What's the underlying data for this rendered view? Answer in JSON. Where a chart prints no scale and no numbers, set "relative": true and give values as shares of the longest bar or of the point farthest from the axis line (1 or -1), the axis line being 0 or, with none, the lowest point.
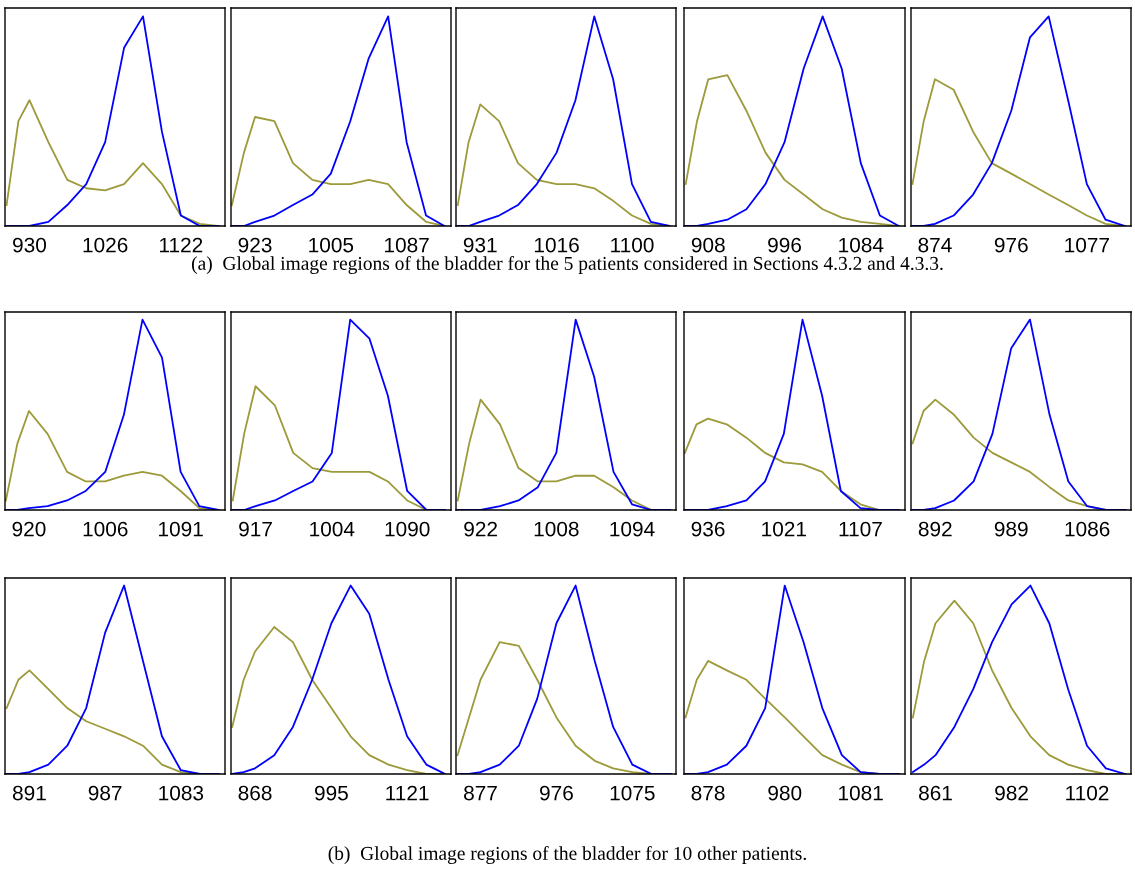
{
  "chart_data": [
    {
      "type": "line",
      "relative": true,
      "xlim": [
        899,
        1178
      ],
      "xticks": [
        930,
        1026,
        1122
      ],
      "annotations": [
        "(a)  Global image regions of the bladder for the 5 patients considered in Sections 4.3.2 and 4.3.3."
      ],
      "x": [
        901,
        916,
        930,
        954,
        978,
        1002,
        1026,
        1050,
        1074,
        1098,
        1122,
        1146,
        1170
      ],
      "series": [
        {
          "color": "#9c9a3a",
          "values": [
            0.1,
            0.5,
            0.6,
            0.4,
            0.22,
            0.18,
            0.17,
            0.2,
            0.3,
            0.2,
            0.05,
            0.01,
            0
          ]
        },
        {
          "color": "#0000ff",
          "values": [
            0,
            0,
            0,
            0.02,
            0.1,
            0.2,
            0.4,
            0.85,
            1.0,
            0.45,
            0.05,
            0,
            0
          ]
        }
      ]
    },
    {
      "type": "line",
      "relative": true,
      "xlim": [
        897,
        1135
      ],
      "xticks": [
        923,
        1005,
        1087
      ],
      "x": [
        898,
        911,
        923,
        944,
        964,
        985,
        1005,
        1026,
        1046,
        1067,
        1087,
        1108,
        1128
      ],
      "series": [
        {
          "color": "#9c9a3a",
          "values": [
            0.1,
            0.35,
            0.52,
            0.5,
            0.3,
            0.22,
            0.2,
            0.2,
            0.22,
            0.2,
            0.1,
            0.02,
            0
          ]
        },
        {
          "color": "#0000ff",
          "values": [
            0,
            0,
            0.02,
            0.05,
            0.1,
            0.15,
            0.25,
            0.5,
            0.8,
            1.0,
            0.4,
            0.05,
            0
          ]
        }
      ]
    },
    {
      "type": "line",
      "relative": true,
      "xlim": [
        904,
        1149
      ],
      "xticks": [
        931,
        1016,
        1100
      ],
      "x": [
        906,
        918,
        931,
        952,
        973,
        994,
        1016,
        1037,
        1058,
        1079,
        1100,
        1121,
        1142
      ],
      "series": [
        {
          "color": "#9c9a3a",
          "values": [
            0.1,
            0.4,
            0.58,
            0.5,
            0.3,
            0.22,
            0.2,
            0.2,
            0.18,
            0.12,
            0.05,
            0.01,
            0
          ]
        },
        {
          "color": "#0000ff",
          "values": [
            0,
            0,
            0.02,
            0.05,
            0.1,
            0.2,
            0.35,
            0.6,
            1.0,
            0.7,
            0.2,
            0.02,
            0
          ]
        }
      ]
    },
    {
      "type": "line",
      "relative": true,
      "xlim": [
        880,
        1135
      ],
      "xticks": [
        908,
        996,
        1084
      ],
      "x": [
        882,
        895,
        908,
        930,
        952,
        974,
        996,
        1018,
        1040,
        1062,
        1084,
        1106,
        1128
      ],
      "series": [
        {
          "color": "#9c9a3a",
          "values": [
            0.2,
            0.5,
            0.7,
            0.72,
            0.55,
            0.35,
            0.22,
            0.15,
            0.08,
            0.04,
            0.02,
            0.01,
            0
          ]
        },
        {
          "color": "#0000ff",
          "values": [
            0,
            0,
            0.01,
            0.03,
            0.08,
            0.2,
            0.4,
            0.75,
            1.0,
            0.75,
            0.3,
            0.05,
            0
          ]
        }
      ]
    },
    {
      "type": "line",
      "relative": true,
      "xlim": [
        842,
        1136
      ],
      "xticks": [
        874,
        976,
        1077
      ],
      "x": [
        844,
        859,
        874,
        899,
        925,
        950,
        976,
        1001,
        1026,
        1052,
        1077,
        1102,
        1128
      ],
      "series": [
        {
          "color": "#9c9a3a",
          "values": [
            0.2,
            0.5,
            0.7,
            0.65,
            0.45,
            0.3,
            0.25,
            0.2,
            0.15,
            0.1,
            0.05,
            0.01,
            0
          ]
        },
        {
          "color": "#0000ff",
          "values": [
            0,
            0,
            0.01,
            0.05,
            0.15,
            0.3,
            0.55,
            0.9,
            1.0,
            0.6,
            0.2,
            0.03,
            0
          ]
        }
      ]
    },
    {
      "type": "line",
      "relative": true,
      "xlim": [
        893,
        1141
      ],
      "xticks": [
        920,
        1006,
        1091
      ],
      "x": [
        894,
        907,
        920,
        941,
        963,
        984,
        1006,
        1027,
        1048,
        1070,
        1091,
        1112,
        1134
      ],
      "series": [
        {
          "color": "#9c9a3a",
          "values": [
            0.05,
            0.35,
            0.52,
            0.4,
            0.2,
            0.15,
            0.15,
            0.18,
            0.2,
            0.18,
            0.1,
            0.01,
            0
          ]
        },
        {
          "color": "#0000ff",
          "values": [
            0,
            0,
            0.01,
            0.02,
            0.05,
            0.1,
            0.2,
            0.5,
            1.0,
            0.8,
            0.2,
            0.02,
            0
          ]
        }
      ]
    },
    {
      "type": "line",
      "relative": true,
      "xlim": [
        889,
        1140
      ],
      "xticks": [
        917,
        1004,
        1090
      ],
      "x": [
        891,
        904,
        917,
        939,
        960,
        982,
        1004,
        1025,
        1047,
        1068,
        1090,
        1112,
        1133
      ],
      "series": [
        {
          "color": "#9c9a3a",
          "values": [
            0.05,
            0.4,
            0.65,
            0.55,
            0.3,
            0.22,
            0.2,
            0.2,
            0.2,
            0.15,
            0.05,
            0,
            0
          ]
        },
        {
          "color": "#0000ff",
          "values": [
            0,
            0,
            0.02,
            0.05,
            0.1,
            0.15,
            0.3,
            1.0,
            0.9,
            0.6,
            0.1,
            0,
            0
          ]
        }
      ]
    },
    {
      "type": "line",
      "relative": true,
      "xlim": [
        894,
        1144
      ],
      "xticks": [
        922,
        1008,
        1094
      ],
      "x": [
        896,
        909,
        922,
        944,
        965,
        987,
        1008,
        1030,
        1051,
        1073,
        1094,
        1116,
        1137
      ],
      "series": [
        {
          "color": "#9c9a3a",
          "values": [
            0.05,
            0.35,
            0.58,
            0.45,
            0.22,
            0.15,
            0.15,
            0.18,
            0.18,
            0.12,
            0.05,
            0,
            0
          ]
        },
        {
          "color": "#0000ff",
          "values": [
            0,
            0,
            0,
            0.02,
            0.05,
            0.12,
            0.3,
            1.0,
            0.7,
            0.2,
            0.03,
            0,
            0
          ]
        }
      ]
    },
    {
      "type": "line",
      "relative": true,
      "xlim": [
        909,
        1157
      ],
      "xticks": [
        936,
        1021,
        1107
      ],
      "x": [
        910,
        923,
        936,
        957,
        979,
        1000,
        1021,
        1042,
        1064,
        1085,
        1107,
        1128,
        1150
      ],
      "series": [
        {
          "color": "#9c9a3a",
          "values": [
            0.3,
            0.45,
            0.48,
            0.45,
            0.38,
            0.3,
            0.25,
            0.24,
            0.2,
            0.1,
            0.03,
            0,
            0
          ]
        },
        {
          "color": "#0000ff",
          "values": [
            0,
            0,
            0,
            0.02,
            0.05,
            0.15,
            0.4,
            1.0,
            0.6,
            0.1,
            0.01,
            0,
            0
          ]
        }
      ]
    },
    {
      "type": "line",
      "relative": true,
      "xlim": [
        861,
        1142
      ],
      "xticks": [
        892,
        989,
        1086
      ],
      "x": [
        863,
        877,
        892,
        916,
        941,
        965,
        989,
        1013,
        1038,
        1062,
        1086,
        1110,
        1135
      ],
      "series": [
        {
          "color": "#9c9a3a",
          "values": [
            0.35,
            0.52,
            0.58,
            0.5,
            0.38,
            0.3,
            0.25,
            0.2,
            0.12,
            0.05,
            0.02,
            0,
            0
          ]
        },
        {
          "color": "#0000ff",
          "values": [
            0,
            0,
            0.01,
            0.05,
            0.15,
            0.4,
            0.85,
            1.0,
            0.5,
            0.15,
            0.02,
            0,
            0
          ]
        }
      ]
    },
    {
      "type": "line",
      "relative": true,
      "xlim": [
        860,
        1139
      ],
      "xticks": [
        891,
        987,
        1083
      ],
      "annotations": [
        "(b)  Global image regions of the bladder for 10 other patients."
      ],
      "x": [
        862,
        877,
        891,
        915,
        939,
        963,
        987,
        1011,
        1035,
        1059,
        1083,
        1107,
        1131
      ],
      "series": [
        {
          "color": "#9c9a3a",
          "values": [
            0.35,
            0.5,
            0.55,
            0.45,
            0.35,
            0.28,
            0.24,
            0.2,
            0.15,
            0.05,
            0.01,
            0,
            0
          ]
        },
        {
          "color": "#0000ff",
          "values": [
            0,
            0,
            0.01,
            0.05,
            0.15,
            0.35,
            0.75,
            1.0,
            0.6,
            0.2,
            0.02,
            0,
            0
          ]
        }
      ]
    },
    {
      "type": "line",
      "relative": true,
      "xlim": [
        828,
        1194
      ],
      "xticks": [
        868,
        995,
        1121
      ],
      "x": [
        830,
        849,
        868,
        900,
        931,
        963,
        995,
        1027,
        1058,
        1090,
        1121,
        1153,
        1184
      ],
      "series": [
        {
          "color": "#9c9a3a",
          "values": [
            0.25,
            0.5,
            0.65,
            0.78,
            0.7,
            0.5,
            0.35,
            0.2,
            0.1,
            0.05,
            0.02,
            0,
            0
          ]
        },
        {
          "color": "#0000ff",
          "values": [
            0,
            0.01,
            0.03,
            0.1,
            0.25,
            0.5,
            0.8,
            1.0,
            0.85,
            0.5,
            0.2,
            0.05,
            0
          ]
        }
      ]
    },
    {
      "type": "line",
      "relative": true,
      "xlim": [
        845,
        1132
      ],
      "xticks": [
        877,
        976,
        1075
      ],
      "x": [
        847,
        862,
        877,
        902,
        927,
        951,
        976,
        1001,
        1026,
        1050,
        1075,
        1100,
        1125
      ],
      "series": [
        {
          "color": "#9c9a3a",
          "values": [
            0.1,
            0.3,
            0.5,
            0.7,
            0.68,
            0.5,
            0.3,
            0.15,
            0.07,
            0.03,
            0.01,
            0,
            0
          ]
        },
        {
          "color": "#0000ff",
          "values": [
            0,
            0,
            0.01,
            0.05,
            0.15,
            0.4,
            0.8,
            1.0,
            0.6,
            0.25,
            0.05,
            0,
            0
          ]
        }
      ]
    },
    {
      "type": "line",
      "relative": true,
      "xlim": [
        846,
        1140
      ],
      "xticks": [
        878,
        980,
        1081
      ],
      "x": [
        848,
        863,
        878,
        903,
        929,
        954,
        980,
        1005,
        1030,
        1056,
        1081,
        1106,
        1132
      ],
      "series": [
        {
          "color": "#9c9a3a",
          "values": [
            0.3,
            0.5,
            0.6,
            0.55,
            0.5,
            0.4,
            0.3,
            0.2,
            0.1,
            0.05,
            0.01,
            0,
            0
          ]
        },
        {
          "color": "#0000ff",
          "values": [
            0,
            0,
            0.01,
            0.05,
            0.15,
            0.35,
            1.0,
            0.7,
            0.35,
            0.1,
            0.01,
            0,
            0
          ]
        }
      ]
    },
    {
      "type": "line",
      "relative": true,
      "xlim": [
        822,
        1172
      ],
      "xticks": [
        861,
        982,
        1102
      ],
      "x": [
        825,
        843,
        861,
        891,
        921,
        951,
        982,
        1012,
        1042,
        1072,
        1102,
        1132,
        1163
      ],
      "series": [
        {
          "color": "#9c9a3a",
          "values": [
            0.3,
            0.6,
            0.8,
            0.92,
            0.8,
            0.55,
            0.35,
            0.2,
            0.1,
            0.05,
            0.02,
            0,
            0
          ]
        },
        {
          "color": "#0000ff",
          "values": [
            0.01,
            0.05,
            0.1,
            0.25,
            0.45,
            0.7,
            0.9,
            1.0,
            0.8,
            0.45,
            0.15,
            0.03,
            0
          ]
        }
      ]
    }
  ]
}
